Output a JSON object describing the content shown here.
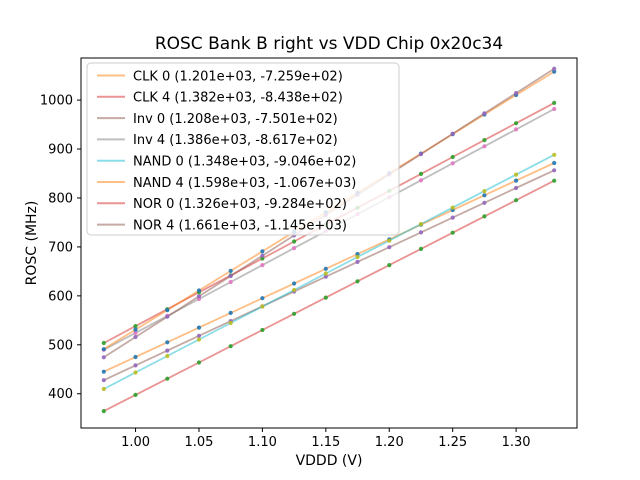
{
  "chart_data": {
    "type": "scatter",
    "title": "ROSC Bank B right vs VDD Chip 0x20c34",
    "xlabel": "VDDD (V)",
    "ylabel": "ROSC (MHz)",
    "xlim": [
      0.957,
      1.348
    ],
    "ylim": [
      330,
      1086
    ],
    "grid": false,
    "legend_position": "upper left",
    "line_alpha": 0.5,
    "xticks": [
      {
        "value": 1.0,
        "label": "1.00"
      },
      {
        "value": 1.05,
        "label": "1.05"
      },
      {
        "value": 1.1,
        "label": "1.10"
      },
      {
        "value": 1.15,
        "label": "1.15"
      },
      {
        "value": 1.2,
        "label": "1.20"
      },
      {
        "value": 1.25,
        "label": "1.25"
      },
      {
        "value": 1.3,
        "label": "1.30"
      }
    ],
    "yticks": [
      {
        "value": 400,
        "label": "400"
      },
      {
        "value": 500,
        "label": "500"
      },
      {
        "value": 600,
        "label": "600"
      },
      {
        "value": 700,
        "label": "700"
      },
      {
        "value": 800,
        "label": "800"
      },
      {
        "value": 900,
        "label": "900"
      },
      {
        "value": 1000,
        "label": "1000"
      }
    ],
    "x": [
      0.975,
      1.0,
      1.025,
      1.05,
      1.075,
      1.1,
      1.125,
      1.15,
      1.175,
      1.2,
      1.225,
      1.25,
      1.275,
      1.3,
      1.33
    ],
    "series": [
      {
        "name": "CLK 0",
        "label": "CLK 0 (1.201e+03, -7.259e+02)",
        "fit": {
          "slope": 1201,
          "intercept": -725.9
        },
        "line_color": "#ff7f0e",
        "marker_color": "#1f77b4",
        "values": [
          445.1,
          475.1,
          505.1,
          535.2,
          565.2,
          595.2,
          625.2,
          655.3,
          685.3,
          715.3,
          745.3,
          775.4,
          805.4,
          835.4,
          871.4
        ]
      },
      {
        "name": "CLK 4",
        "label": "CLK 4 (1.382e+03, -8.438e+02)",
        "fit": {
          "slope": 1382,
          "intercept": -843.8
        },
        "line_color": "#d62728",
        "marker_color": "#2ca02c",
        "values": [
          503.7,
          538.2,
          572.8,
          607.3,
          641.9,
          676.4,
          711.0,
          745.5,
          780.1,
          814.6,
          849.2,
          883.7,
          918.3,
          952.8,
          994.3
        ]
      },
      {
        "name": "Inv 0",
        "label": "Inv 0 (1.208e+03, -7.501e+02)",
        "fit": {
          "slope": 1208,
          "intercept": -750.1
        },
        "line_color": "#8c564b",
        "marker_color": "#9467bd",
        "values": [
          427.7,
          457.9,
          488.1,
          518.3,
          548.5,
          578.7,
          608.9,
          639.1,
          669.3,
          699.5,
          729.7,
          759.9,
          790.1,
          820.3,
          856.5
        ]
      },
      {
        "name": "Inv 4",
        "label": "Inv 4 (1.386e+03, -8.617e+02)",
        "fit": {
          "slope": 1386,
          "intercept": -861.7
        },
        "line_color": "#7f7f7f",
        "marker_color": "#e377c2",
        "values": [
          489.7,
          524.3,
          559.0,
          593.6,
          628.3,
          662.9,
          697.6,
          732.2,
          766.9,
          801.5,
          836.2,
          870.8,
          905.5,
          940.1,
          981.7
        ]
      },
      {
        "name": "NAND 0",
        "label": "NAND 0 (1.348e+03, -9.046e+02)",
        "fit": {
          "slope": 1348,
          "intercept": -904.6
        },
        "line_color": "#17becf",
        "marker_color": "#bcbd22",
        "values": [
          409.7,
          443.4,
          477.1,
          510.8,
          544.5,
          578.2,
          611.9,
          645.6,
          679.3,
          713.0,
          746.7,
          780.4,
          814.1,
          847.8,
          888.2
        ]
      },
      {
        "name": "NAND 4",
        "label": "NAND 4 (1.598e+03, -1.067e+03)",
        "fit": {
          "slope": 1598,
          "intercept": -1067
        },
        "line_color": "#ff7f0e",
        "marker_color": "#1f77b4",
        "values": [
          491.1,
          531.0,
          571.0,
          610.9,
          650.9,
          690.8,
          730.8,
          770.7,
          810.7,
          850.6,
          890.6,
          930.5,
          970.5,
          1010.4,
          1058.3
        ]
      },
      {
        "name": "NOR 0",
        "label": "NOR 0 (1.326e+03, -9.284e+02)",
        "fit": {
          "slope": 1326,
          "intercept": -928.4
        },
        "line_color": "#d62728",
        "marker_color": "#2ca02c",
        "values": [
          364.5,
          397.6,
          430.8,
          463.9,
          497.1,
          530.2,
          563.4,
          596.5,
          629.7,
          662.8,
          696.0,
          729.1,
          762.3,
          795.4,
          835.2
        ]
      },
      {
        "name": "NOR 4",
        "label": "NOR 4 (1.661e+03, -1.145e+03)",
        "fit": {
          "slope": 1661,
          "intercept": -1145
        },
        "line_color": "#8c564b",
        "marker_color": "#9467bd",
        "values": [
          474.5,
          516.0,
          557.5,
          599.1,
          640.6,
          682.1,
          723.6,
          765.2,
          806.7,
          848.2,
          889.7,
          931.3,
          972.8,
          1014.3,
          1064.1
        ]
      }
    ]
  }
}
